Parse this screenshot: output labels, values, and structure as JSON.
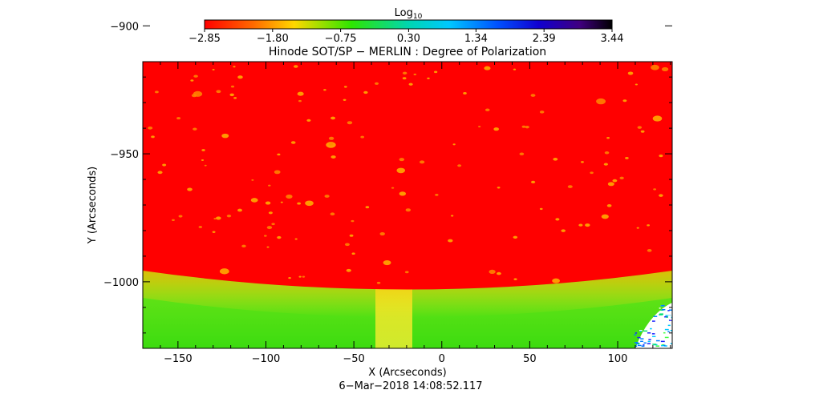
{
  "chart_data": {
    "type": "heatmap",
    "title": "Hinode SOT/SP − MERLIN : Degree of Polarization",
    "xlabel": "X (Arcseconds)",
    "ylabel": "Y (Arcseconds)",
    "xlim": [
      -170,
      131
    ],
    "ylim": [
      -1026,
      -914
    ],
    "x_ticks": [
      -150,
      -100,
      -50,
      0,
      50,
      100
    ],
    "x_tick_labels": [
      "−150",
      "−100",
      "−50",
      "0",
      "50",
      "100"
    ],
    "y_ticks": [
      -900,
      -950,
      -1000
    ],
    "y_tick_labels": [
      "−900",
      "−950",
      "−1000"
    ],
    "colorbar": {
      "label_main": "Log",
      "label_sub": "10",
      "colormap": "rainbow-reversed",
      "range": [
        -2.85,
        3.44
      ],
      "ticks": [
        -2.85,
        -1.8,
        -0.75,
        0.3,
        1.34,
        2.39,
        3.44
      ],
      "tick_labels": [
        "−2.85",
        "−1.80",
        "−0.75",
        "0.30",
        "1.34",
        "2.39",
        "3.44"
      ]
    },
    "regions": {
      "disk_value": -2.85,
      "limb_value": -1.3,
      "off_limb_value": -0.2,
      "limb_y_at_edges": -981,
      "limb_y_center": -993,
      "limb_center_x": -10
    },
    "footer": "6−Mar−2018 14:08:52.117"
  }
}
